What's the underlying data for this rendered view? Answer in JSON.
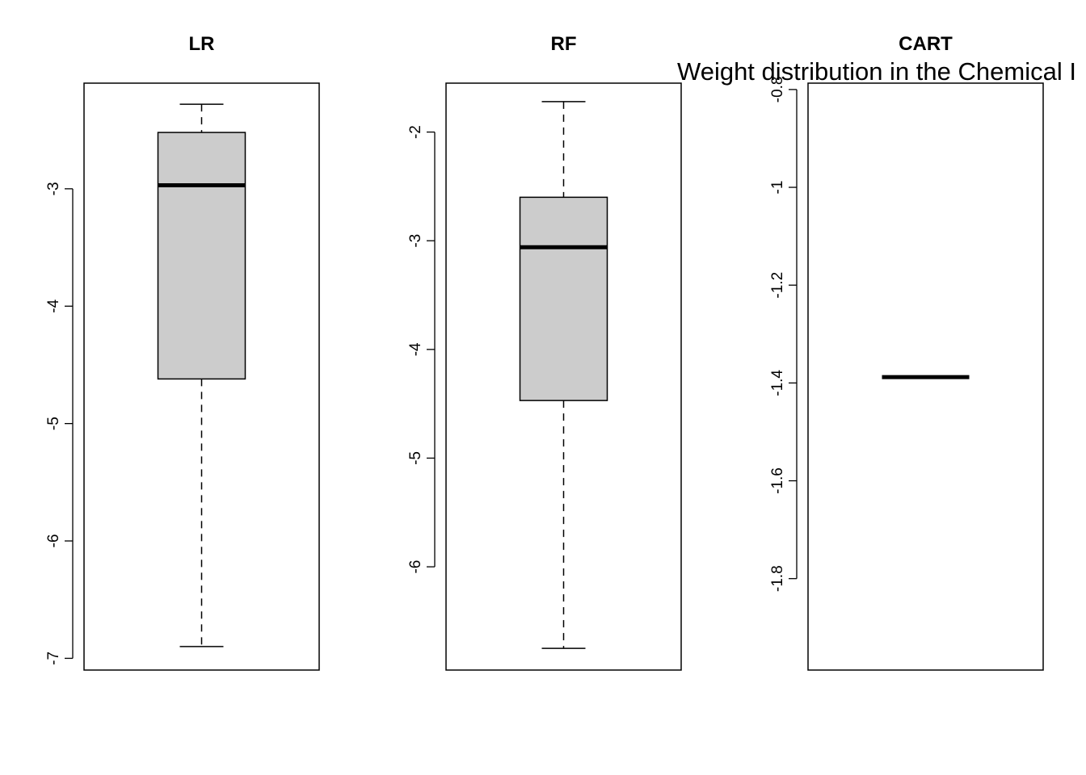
{
  "overlay_text": "Weight distribution in the Chemical I",
  "chart_data": [
    {
      "type": "box",
      "title": "LR",
      "ylim": [
        -7.1,
        -2.1
      ],
      "yticks": [
        -3,
        -4,
        -5,
        -6,
        -7
      ],
      "box": {
        "whisker_low": -6.9,
        "q1": -4.62,
        "median": -2.97,
        "q3": -2.52,
        "whisker_high": -2.28
      },
      "box_color": "#cccccc"
    },
    {
      "type": "box",
      "title": "RF",
      "ylim": [
        -6.95,
        -1.55
      ],
      "yticks": [
        -2,
        -3,
        -4,
        -5,
        -6
      ],
      "box": {
        "whisker_low": -6.75,
        "q1": -4.47,
        "median": -3.06,
        "q3": -2.6,
        "whisker_high": -1.72
      },
      "box_color": "#cccccc"
    },
    {
      "type": "box",
      "title": "CART",
      "ylim": [
        -1.987,
        -0.787
      ],
      "yticks": [
        -0.8,
        -1.0,
        -1.2,
        -1.4,
        -1.6,
        -1.8
      ],
      "box": {
        "whisker_low": -1.388,
        "q1": -1.388,
        "median": -1.388,
        "q3": -1.388,
        "whisker_high": -1.388
      },
      "box_color": "#cccccc"
    }
  ]
}
